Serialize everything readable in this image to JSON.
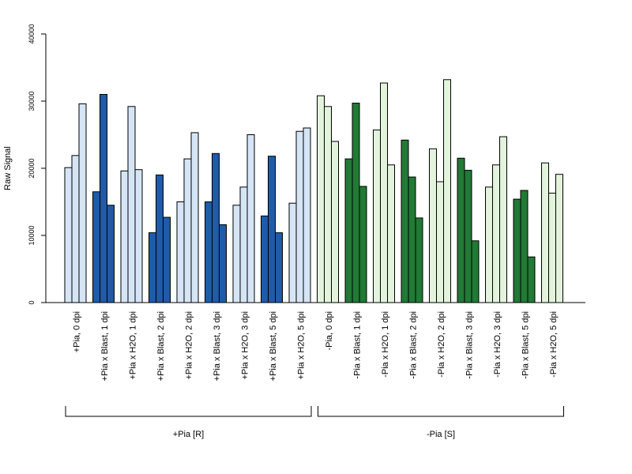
{
  "chart_data": {
    "type": "bar",
    "ylabel": "Raw Signal",
    "ylim": [
      0,
      40000
    ],
    "yticks": [
      0,
      10000,
      20000,
      30000,
      40000
    ],
    "categories": [
      "+Pia, 0 dpi",
      "+Pia x Blast, 1 dpi",
      "+Pia x H2O, 1 dpi",
      "+Pia x Blast, 2 dpi",
      "+Pia x H2O, 2 dpi",
      "+Pia x Blast, 3 dpi",
      "+Pia x H2O, 3 dpi",
      "+Pia x Blast, 5 dpi",
      "+Pia x H2O, 5 dpi",
      "-Pia, 0 dpi",
      "-Pia x Blast, 1 dpi",
      "-Pia x H2O, 1 dpi",
      "-Pia x Blast, 2 dpi",
      "-Pia x H2O, 2 dpi",
      "-Pia x Blast, 3 dpi",
      "-Pia x H2O, 3 dpi",
      "-Pia x Blast, 5 dpi",
      "-Pia x H2O, 5 dpi"
    ],
    "values": [
      [
        20100,
        21900,
        29600
      ],
      [
        16500,
        31000,
        14500
      ],
      [
        19600,
        29200,
        19800
      ],
      [
        10400,
        19000,
        12700
      ],
      [
        15000,
        21400,
        25300
      ],
      [
        15000,
        22200,
        11600
      ],
      [
        14500,
        17200,
        25000
      ],
      [
        12900,
        21800,
        10400
      ],
      [
        14800,
        25500,
        26000
      ],
      [
        30800,
        29200,
        24000
      ],
      [
        21400,
        29700,
        17300
      ],
      [
        25700,
        32700,
        20500
      ],
      [
        24200,
        18700,
        12600
      ],
      [
        22900,
        18000,
        33200
      ],
      [
        21500,
        19700,
        9200
      ],
      [
        17200,
        20500,
        24700
      ],
      [
        15400,
        16700,
        6800
      ],
      [
        20800,
        16300,
        19100
      ]
    ],
    "bar_colors": [
      "#d6e5f5",
      "#1f5ba8",
      "#d6e5f5",
      "#1f5ba8",
      "#d6e5f5",
      "#1f5ba8",
      "#d6e5f5",
      "#1f5ba8",
      "#d6e5f5",
      "#e2f4dc",
      "#217a35",
      "#e2f4dc",
      "#217a35",
      "#e2f4dc",
      "#217a35",
      "#e2f4dc",
      "#217a35",
      "#e2f4dc"
    ],
    "groups": [
      {
        "label": "+Pia [R]",
        "start": 0,
        "end": 8
      },
      {
        "label": "-Pia [S]",
        "start": 9,
        "end": 17
      }
    ],
    "grid": false,
    "legend": "none"
  }
}
